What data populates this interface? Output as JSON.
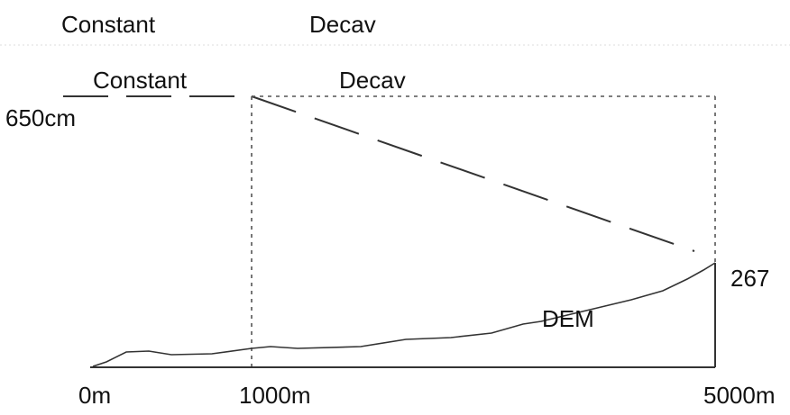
{
  "labels": {
    "top_constant": "Constant",
    "top_decay": "Decav",
    "constant": "Constant",
    "decay": "Decav",
    "start_depth": "650cm",
    "end_depth": "267",
    "dem": "DEM",
    "x_start": "0m",
    "x_break": "1000m",
    "x_end": "5000m"
  },
  "colors": {
    "line": "#333333",
    "guide": "#555555",
    "text": "#111111"
  }
}
